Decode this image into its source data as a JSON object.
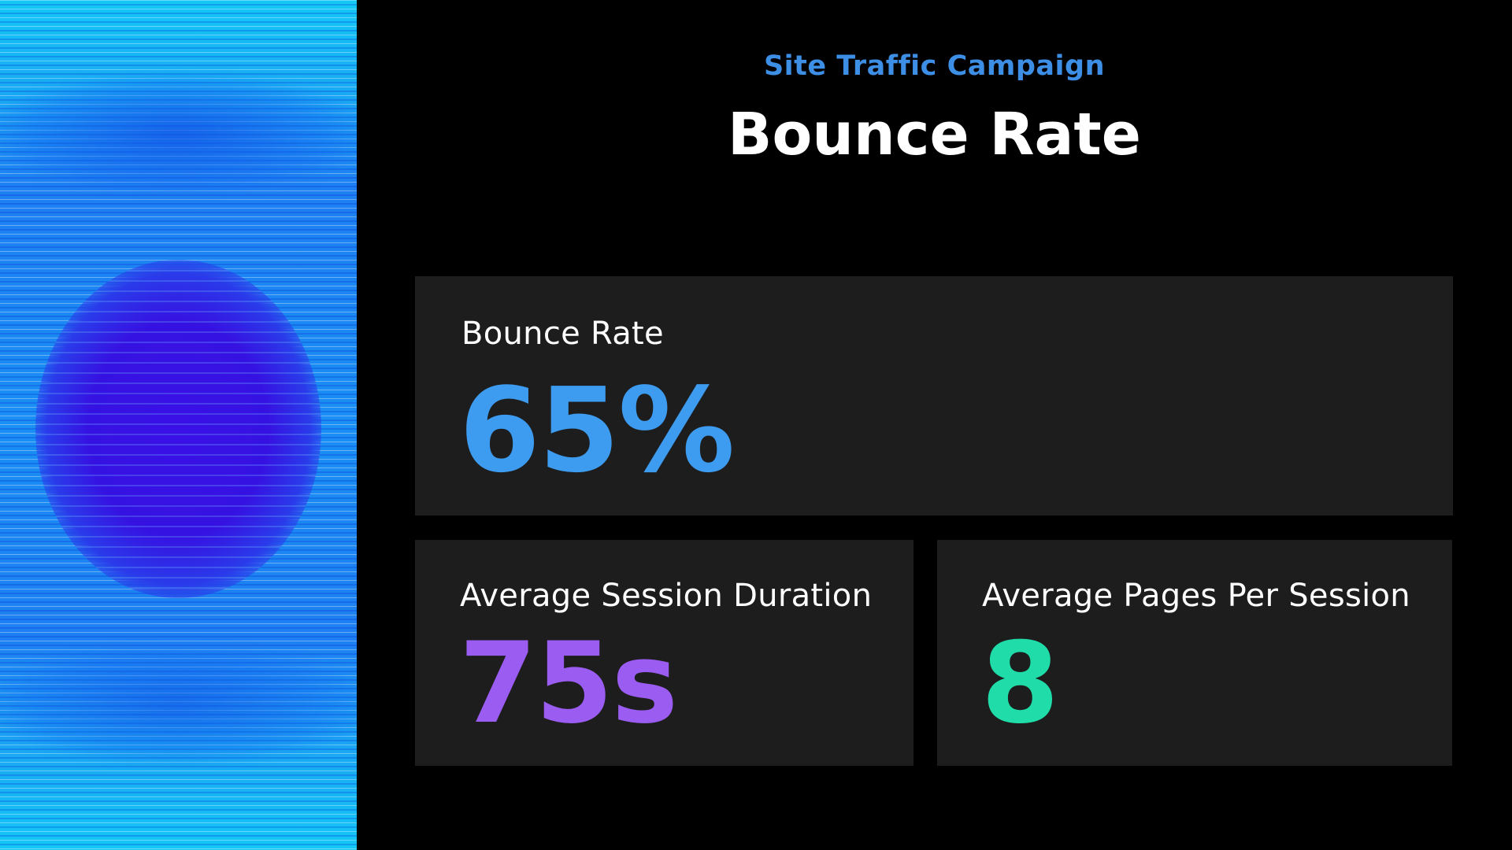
{
  "header": {
    "subtitle": "Site Traffic Campaign",
    "title": "Bounce Rate"
  },
  "metrics": [
    {
      "label": "Bounce Rate",
      "value": "65%",
      "color": "#3d9bf0"
    },
    {
      "label": "Average Session Duration",
      "value": "75s",
      "color": "#9b5cf2"
    },
    {
      "label": "Average Pages Per Session",
      "value": "8",
      "color": "#1fdca8"
    }
  ],
  "colors": {
    "background": "#000000",
    "card": "#1d1d1d",
    "subtitle": "#3d8fe6",
    "title": "#ffffff"
  }
}
